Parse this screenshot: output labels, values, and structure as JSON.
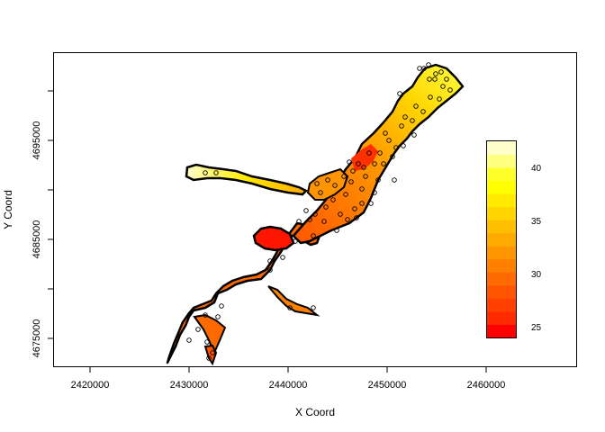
{
  "chart_data": {
    "type": "heatmap",
    "xlabel": "X Coord",
    "ylabel": "Y Coord",
    "xlim": [
      2415500,
      2469500
    ],
    "ylim": [
      4672000,
      4701000
    ],
    "x_ticks": [
      2420000,
      2430000,
      2440000,
      2450000,
      2460000
    ],
    "x_tick_labels": [
      "2420000",
      "2430000",
      "2440000",
      "2450000",
      "2460000"
    ],
    "y_ticks": [
      4675000,
      4685000,
      4695000
    ],
    "y_tick_labels": [
      "4675000",
      "4685000",
      "4695000"
    ],
    "legend": {
      "placement": "right",
      "range": [
        24,
        43
      ],
      "ticks": [
        25,
        30,
        35,
        40
      ],
      "tick_labels": [
        "25",
        "30",
        "35",
        "40"
      ],
      "colors": [
        "#FF0000",
        "#FF2A00",
        "#FF4000",
        "#FF5500",
        "#FF6A00",
        "#FF8000",
        "#FF9500",
        "#FFAA00",
        "#FFBF00",
        "#FFD500",
        "#FFEA00",
        "#FFFF00",
        "#FFFF2A",
        "#FFFF80",
        "#FFFFCC"
      ]
    },
    "colors": {
      "low": "#FF0000",
      "mid": "#FF8000",
      "high": "#FFFF00",
      "max": "#FFFFCC",
      "outline": "#000000"
    }
  }
}
